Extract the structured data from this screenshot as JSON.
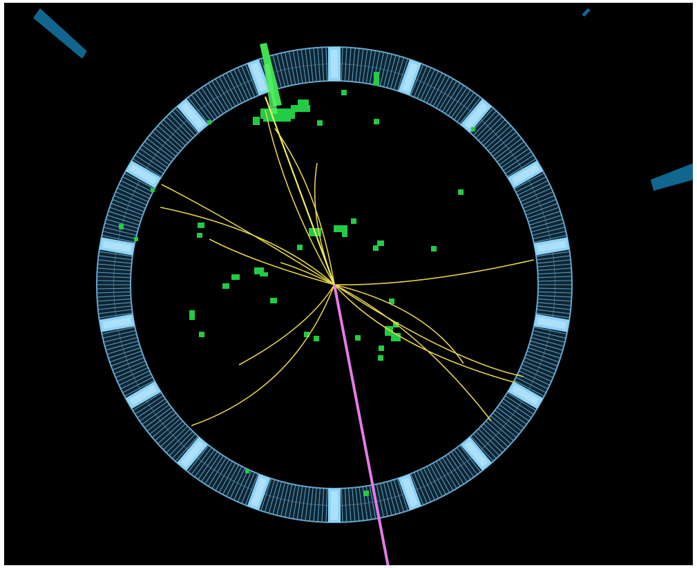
{
  "scene": {
    "subject": "particle-collision-event-display",
    "colors": {
      "background": "#000000",
      "page_border": "#ffffff",
      "calorimeter_ring": "#6aa7cc",
      "calorimeter_segment": "#8fd3f5",
      "tracks": "#e6d44a",
      "hadronic_deposits": "#22cc44",
      "jet": "#3fe04f",
      "missing_energy": "#e67be6",
      "muon_chambers": "#11668f"
    },
    "icons": [
      "detector-ring",
      "charged-track",
      "energy-deposit",
      "missing-energy-line",
      "muon-chamber"
    ]
  }
}
